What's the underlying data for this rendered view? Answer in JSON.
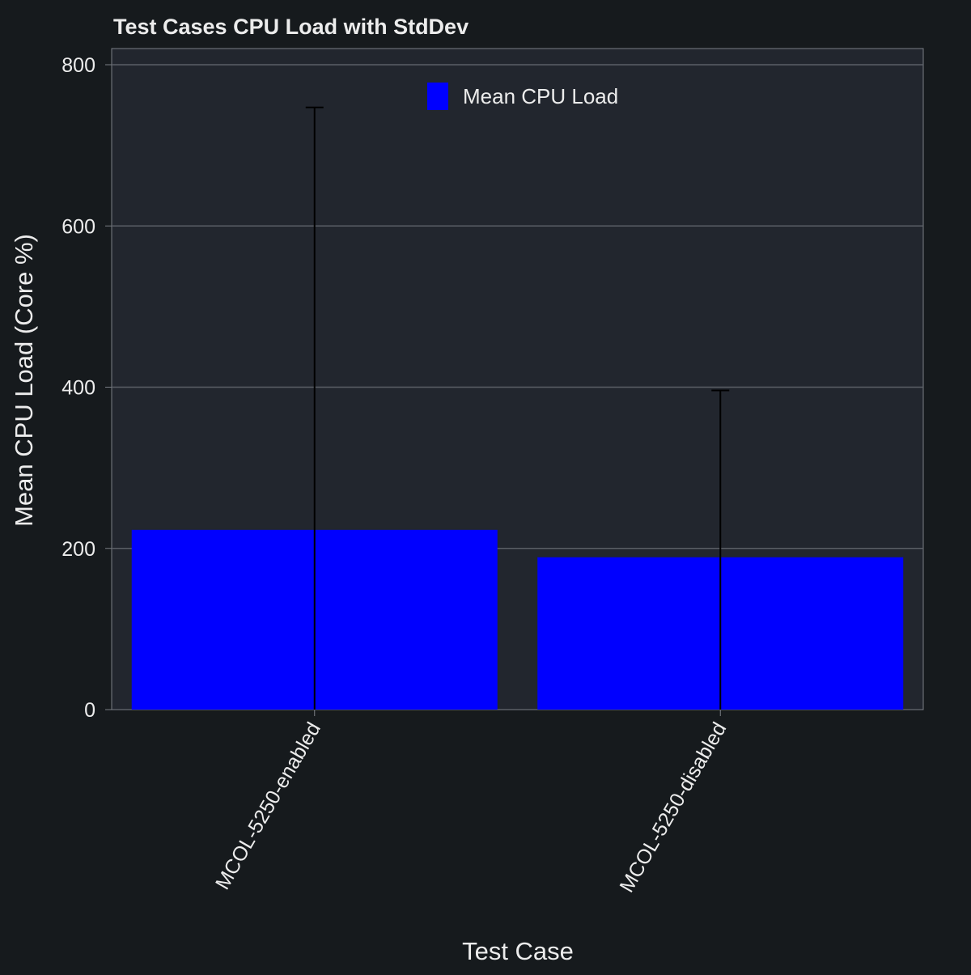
{
  "colors": {
    "background": "#161a1d",
    "plot_background": "#22262e",
    "grid": "#5b5f66",
    "text": "#ececec",
    "bar": "#0000ff",
    "error_bar": "#000000"
  },
  "chart_data": {
    "type": "bar",
    "title": "Test Cases CPU Load with StdDev",
    "xlabel": "Test Case",
    "ylabel": "Mean CPU Load (Core %)",
    "categories": [
      "MCOL-5250-enabled",
      "MCOL-5250-disabled"
    ],
    "series": [
      {
        "name": "Mean CPU Load",
        "values": [
          223,
          189
        ],
        "error": [
          524,
          207
        ]
      }
    ],
    "ylim": [
      0,
      820
    ],
    "yticks": [
      0,
      200,
      400,
      600,
      800
    ],
    "grid": true,
    "legend_position": "top-center",
    "xtick_rotation": "45 degrees"
  }
}
